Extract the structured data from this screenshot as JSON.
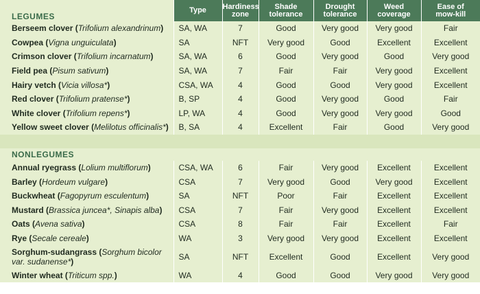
{
  "columns": {
    "type": "Type",
    "hardiness": [
      "Hardiness",
      "zone"
    ],
    "shade": [
      "Shade",
      "tolerance"
    ],
    "drought": [
      "Drought",
      "tolerance"
    ],
    "weed": [
      "Weed",
      "coverage"
    ],
    "mowkill": [
      "Ease of",
      "mow-kill"
    ]
  },
  "sections": [
    {
      "title": "LEGUMES",
      "rows": [
        {
          "name": "Berseem clover",
          "sci": "Trifolium alexandrinum",
          "type": "SA, WA",
          "zone": "7",
          "shade": "Good",
          "drought": "Very good",
          "weed": "Very good",
          "mowkill": "Fair"
        },
        {
          "name": "Cowpea",
          "sci": "Vigna unguiculata",
          "type": "SA",
          "zone": "NFT",
          "shade": "Very good",
          "drought": "Good",
          "weed": "Excellent",
          "mowkill": "Excellent"
        },
        {
          "name": "Crimson clover",
          "sci": "Trifolium incarnatum",
          "type": "SA, WA",
          "zone": "6",
          "shade": "Good",
          "drought": "Very good",
          "weed": "Good",
          "mowkill": "Very good"
        },
        {
          "name": "Field pea",
          "sci": "Pisum sativum",
          "type": "SA, WA",
          "zone": "7",
          "shade": "Fair",
          "drought": "Fair",
          "weed": "Very good",
          "mowkill": "Excellent"
        },
        {
          "name": "Hairy vetch",
          "sci": "Vicia villosa*",
          "type": "CSA, WA",
          "zone": "4",
          "shade": "Good",
          "drought": "Good",
          "weed": "Very good",
          "mowkill": "Excellent"
        },
        {
          "name": "Red clover",
          "sci": "Trifolium pratense*",
          "type": "B, SP",
          "zone": "4",
          "shade": "Good",
          "drought": "Very good",
          "weed": "Good",
          "mowkill": "Fair"
        },
        {
          "name": "White clover",
          "sci": "Trifolium repens*",
          "type": "LP, WA",
          "zone": "4",
          "shade": "Good",
          "drought": "Very good",
          "weed": "Very good",
          "mowkill": "Good"
        },
        {
          "name": "Yellow sweet clover",
          "sci": "Melilotus officinalis*",
          "type": "B, SA",
          "zone": "4",
          "shade": "Excellent",
          "drought": "Fair",
          "weed": "Good",
          "mowkill": "Very good"
        }
      ]
    },
    {
      "title": "NONLEGUMES",
      "rows": [
        {
          "name": "Annual ryegrass",
          "sci": "Lolium multiflorum",
          "type": "CSA, WA",
          "zone": "6",
          "shade": "Fair",
          "drought": "Very good",
          "weed": "Excellent",
          "mowkill": "Excellent"
        },
        {
          "name": "Barley",
          "sci": "Hordeum vulgare",
          "type": "CSA",
          "zone": "7",
          "shade": "Very good",
          "drought": "Good",
          "weed": "Very good",
          "mowkill": "Excellent"
        },
        {
          "name": "Buckwheat",
          "sci": "Fagopyrum esculentum",
          "type": "SA",
          "zone": "NFT",
          "shade": "Poor",
          "drought": "Fair",
          "weed": "Excellent",
          "mowkill": "Excellent"
        },
        {
          "name": "Mustard",
          "sci": "Brassica juncea*, Sinapis alba",
          "type": "CSA",
          "zone": "7",
          "shade": "Fair",
          "drought": "Very good",
          "weed": "Excellent",
          "mowkill": "Excellent"
        },
        {
          "name": "Oats",
          "sci": "Avena sativa",
          "type": "CSA",
          "zone": "8",
          "shade": "Fair",
          "drought": "Fair",
          "weed": "Excellent",
          "mowkill": "Fair"
        },
        {
          "name": "Rye",
          "sci": "Secale cereale",
          "type": "WA",
          "zone": "3",
          "shade": "Very good",
          "drought": "Very good",
          "weed": "Excellent",
          "mowkill": "Excellent"
        },
        {
          "name": "Sorghum-sudangrass",
          "sci": "Sorghum bicolor var. sudanense*",
          "type": "SA",
          "zone": "NFT",
          "shade": "Excellent",
          "drought": "Good",
          "weed": "Excellent",
          "mowkill": "Very good",
          "wrap": true
        },
        {
          "name": "Winter wheat",
          "sci": "Triticum spp.",
          "type": "WA",
          "zone": "4",
          "shade": "Good",
          "drought": "Good",
          "weed": "Very good",
          "mowkill": "Very good"
        }
      ]
    }
  ]
}
